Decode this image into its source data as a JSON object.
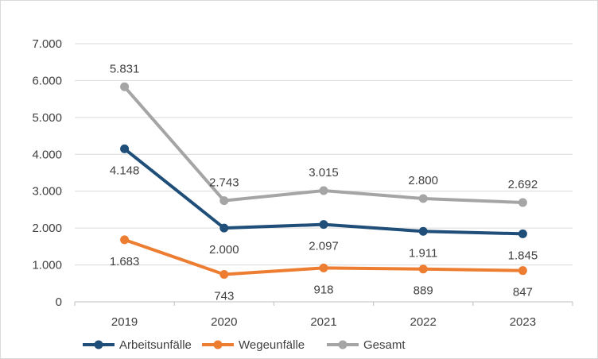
{
  "chart_data": {
    "type": "line",
    "categories": [
      "2019",
      "2020",
      "2021",
      "2022",
      "2023"
    ],
    "series": [
      {
        "name": "Arbeitsunfälle",
        "color": "#1f4e79",
        "values": [
          4148,
          2000,
          2097,
          1911,
          1845
        ],
        "labels": [
          "4.148",
          "2.000",
          "2.097",
          "1.911",
          "1.845"
        ]
      },
      {
        "name": "Wegeunfälle",
        "color": "#ed7d31",
        "values": [
          1683,
          743,
          918,
          889,
          847
        ],
        "labels": [
          "1.683",
          "743",
          "918",
          "889",
          "847"
        ]
      },
      {
        "name": "Gesamt",
        "color": "#a5a5a5",
        "values": [
          5831,
          2743,
          3015,
          2800,
          2692
        ],
        "labels": [
          "5.831",
          "2.743",
          "3.015",
          "2.800",
          "2.692"
        ]
      }
    ],
    "ylim": [
      0,
      7000
    ],
    "y_ticks": [
      0,
      1000,
      2000,
      3000,
      4000,
      5000,
      6000,
      7000
    ],
    "y_tick_labels": [
      "0",
      "1.000",
      "2.000",
      "3.000",
      "4.000",
      "5.000",
      "6.000",
      "7.000"
    ],
    "grid": true,
    "legend_position": "bottom-left",
    "title": "",
    "xlabel": "",
    "ylabel": ""
  }
}
